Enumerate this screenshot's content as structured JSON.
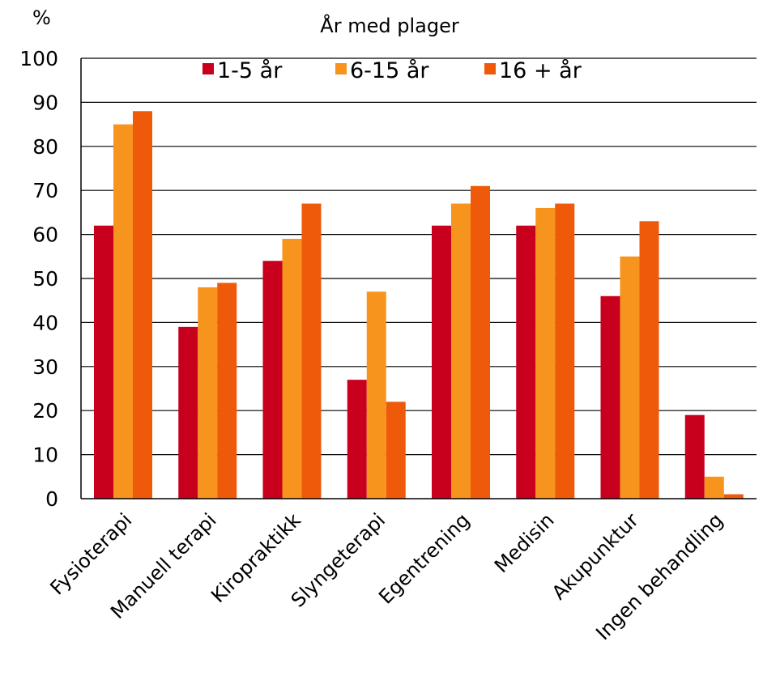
{
  "chart_data": {
    "type": "bar",
    "title": "År med plager",
    "ylabel": "%",
    "xlabel": "",
    "ylim": [
      0,
      100
    ],
    "yticks": [
      0,
      10,
      20,
      30,
      40,
      50,
      60,
      70,
      80,
      90,
      100
    ],
    "grid": true,
    "legend_position": "top-center",
    "categories": [
      "Fysioterapi",
      "Manuell terapi",
      "Kiropraktikk",
      "Slyngeterapi",
      "Egentrening",
      "Medisin",
      "Akupunktur",
      "Ingen behandling"
    ],
    "series": [
      {
        "name": "1-5 år",
        "color": "#c8001e",
        "values": [
          62,
          39,
          54,
          27,
          62,
          62,
          46,
          19
        ]
      },
      {
        "name": "6-15 år",
        "color": "#f7941d",
        "values": [
          85,
          48,
          59,
          47,
          67,
          66,
          55,
          5
        ]
      },
      {
        "name": "16 + år",
        "color": "#ee5a0a",
        "values": [
          88,
          49,
          67,
          22,
          71,
          67,
          63,
          1
        ]
      }
    ]
  }
}
